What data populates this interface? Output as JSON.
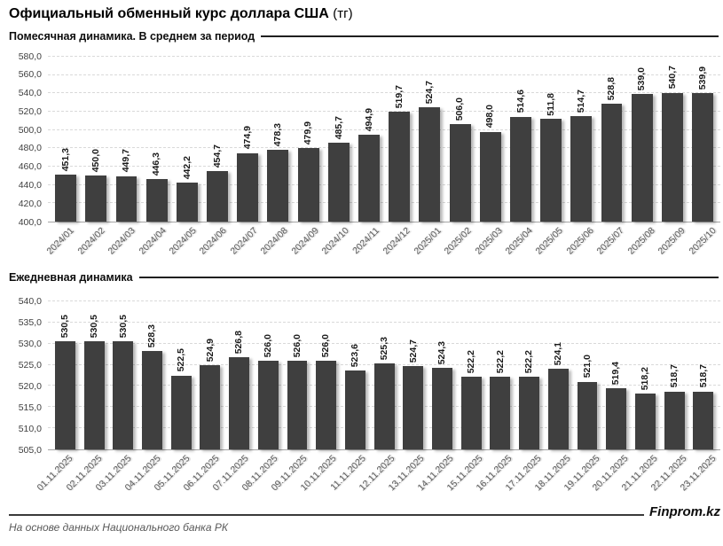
{
  "header": {
    "title": "Официальный обменный курс доллара США",
    "title_suffix": "(тг)"
  },
  "chart_data": [
    {
      "type": "bar",
      "title": "Помесячная динамика. В среднем за период",
      "categories": [
        "2024/01",
        "2024/02",
        "2024/03",
        "2024/04",
        "2024/05",
        "2024/06",
        "2024/07",
        "2024/08",
        "2024/09",
        "2024/10",
        "2024/11",
        "2024/12",
        "2025/01",
        "2025/02",
        "2025/03",
        "2025/04",
        "2025/05",
        "2025/06",
        "2025/07",
        "2025/08",
        "2025/09",
        "2025/10"
      ],
      "values": [
        451.3,
        450.0,
        449.7,
        446.3,
        442.2,
        454.7,
        474.9,
        478.3,
        479.9,
        485.7,
        494.9,
        519.7,
        524.7,
        506.0,
        498.0,
        514.6,
        511.8,
        514.7,
        528.8,
        539.0,
        540.7,
        539.9
      ],
      "ylim": [
        400,
        580
      ],
      "ytick_step": 20,
      "grid": true,
      "bar_color": "#3f3f3f",
      "value_label_rotation": 90,
      "xtick_rotation": 45,
      "decimal_separator": ","
    },
    {
      "type": "bar",
      "title": "Ежедневная динамика",
      "categories": [
        "01.11.2025",
        "02.11.2025",
        "03.11.2025",
        "04.11.2025",
        "05.11.2025",
        "06.11.2025",
        "07.11.2025",
        "08.11.2025",
        "09.11.2025",
        "10.11.2025",
        "11.11.2025",
        "12.11.2025",
        "13.11.2025",
        "14.11.2025",
        "15.11.2025",
        "16.11.2025",
        "17.11.2025",
        "18.11.2025",
        "19.11.2025",
        "20.11.2025",
        "21.11.2025",
        "22.11.2025",
        "23.11.2025"
      ],
      "values": [
        530.5,
        530.5,
        530.5,
        528.3,
        522.5,
        524.9,
        526.8,
        526.0,
        526.0,
        526.0,
        523.6,
        525.3,
        524.7,
        524.3,
        522.2,
        522.2,
        522.2,
        524.1,
        521.0,
        519.4,
        518.2,
        518.7,
        518.7
      ],
      "ylim": [
        505,
        540
      ],
      "ytick_step": 5,
      "grid": true,
      "bar_color": "#3f3f3f",
      "value_label_rotation": 90,
      "xtick_rotation": 45,
      "decimal_separator": ","
    }
  ],
  "footer": {
    "source": "На основе данных Национального банка РК",
    "brand": "Finprom.kz"
  }
}
